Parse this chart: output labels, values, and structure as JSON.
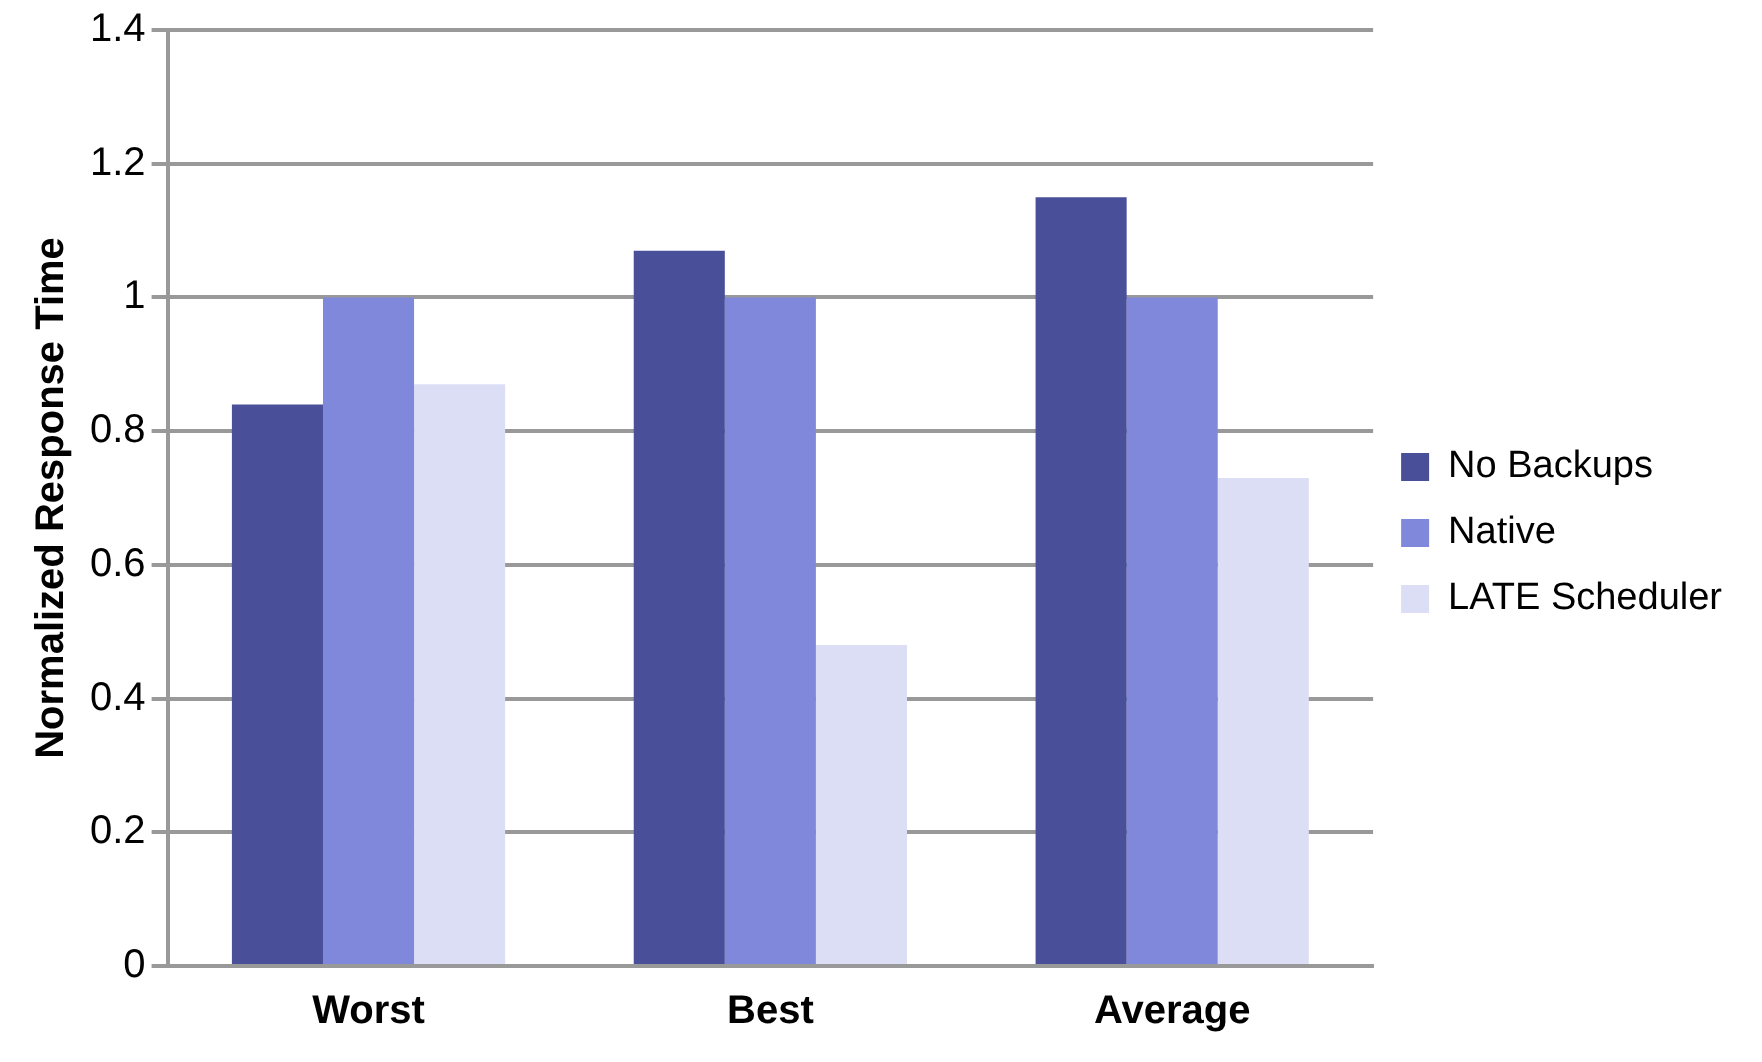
{
  "chart_data": {
    "type": "bar",
    "ylabel": "Normalized Response Time",
    "categories": [
      "Worst",
      "Best",
      "Average"
    ],
    "series": [
      {
        "name": "No Backups",
        "color": "#4a4f9a",
        "values": [
          0.84,
          1.07,
          1.15
        ]
      },
      {
        "name": "Native",
        "color": "#8088dc",
        "values": [
          1.0,
          1.0,
          1.0
        ]
      },
      {
        "name": "LATE Scheduler",
        "color": "#dcdef5",
        "values": [
          0.87,
          0.48,
          0.73
        ]
      }
    ],
    "ylim": [
      0,
      1.4
    ],
    "yticks": [
      0,
      0.2,
      0.4,
      0.6,
      0.8,
      1,
      1.2,
      1.4
    ],
    "grid": "y",
    "legend": "right"
  }
}
